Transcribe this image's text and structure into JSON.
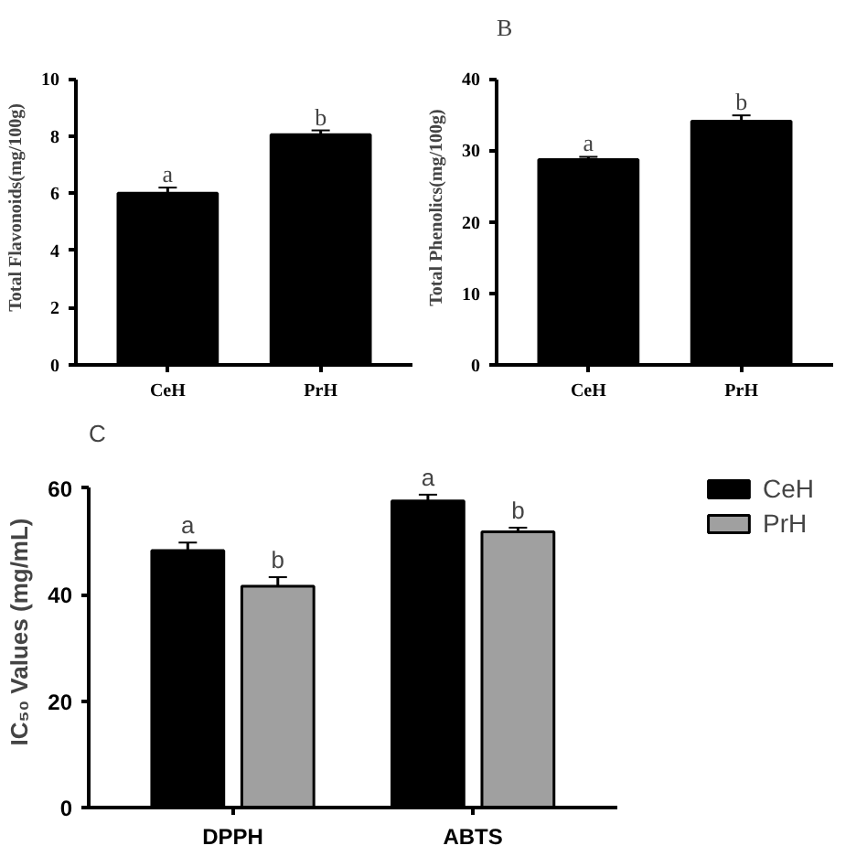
{
  "chart_data": [
    {
      "type": "bar",
      "ylabel": "Total Flavonoids(mg/100g)",
      "categories": [
        "CeH",
        "PrH"
      ],
      "series": [
        {
          "color": "#000000",
          "values": [
            6.0,
            8.05
          ],
          "errors": [
            0.2,
            0.15
          ]
        }
      ],
      "ylim": [
        0,
        10
      ],
      "yticks": [
        0,
        2,
        4,
        6,
        8,
        10
      ],
      "grid": false,
      "legend": false,
      "annotations": [
        {
          "text": "a",
          "x": "CeH",
          "y": 6.2
        },
        {
          "text": "b",
          "x": "PrH",
          "y": 8.2
        }
      ]
    },
    {
      "type": "bar",
      "title": "B",
      "ylabel": "Total Phenolics(mg/100g)",
      "categories": [
        "CeH",
        "PrH"
      ],
      "series": [
        {
          "color": "#000000",
          "values": [
            28.7,
            34.1
          ],
          "errors": [
            0.4,
            0.8
          ]
        }
      ],
      "ylim": [
        0,
        40
      ],
      "yticks": [
        0,
        10,
        20,
        30,
        40
      ],
      "grid": false,
      "legend": false,
      "annotations": [
        {
          "text": "a",
          "x": "CeH",
          "y": 29.1
        },
        {
          "text": "b",
          "x": "PrH",
          "y": 34.9
        }
      ]
    },
    {
      "type": "bar",
      "title": "C",
      "ylabel": "IC₅₀ Values (mg/mL)",
      "categories": [
        "DPPH",
        "ABTS"
      ],
      "series": [
        {
          "name": "CeH",
          "color": "#000000",
          "values": [
            48.3,
            57.6
          ],
          "errors": [
            1.5,
            1.2
          ]
        },
        {
          "name": "PrH",
          "color": "#a0a0a0",
          "values": [
            41.6,
            51.8
          ],
          "errors": [
            1.7,
            0.8
          ]
        }
      ],
      "ylim": [
        0,
        60
      ],
      "yticks": [
        0,
        20,
        40,
        60
      ],
      "grid": false,
      "legend": "right",
      "annotations": [
        "a",
        "b",
        "a",
        "b"
      ]
    }
  ]
}
